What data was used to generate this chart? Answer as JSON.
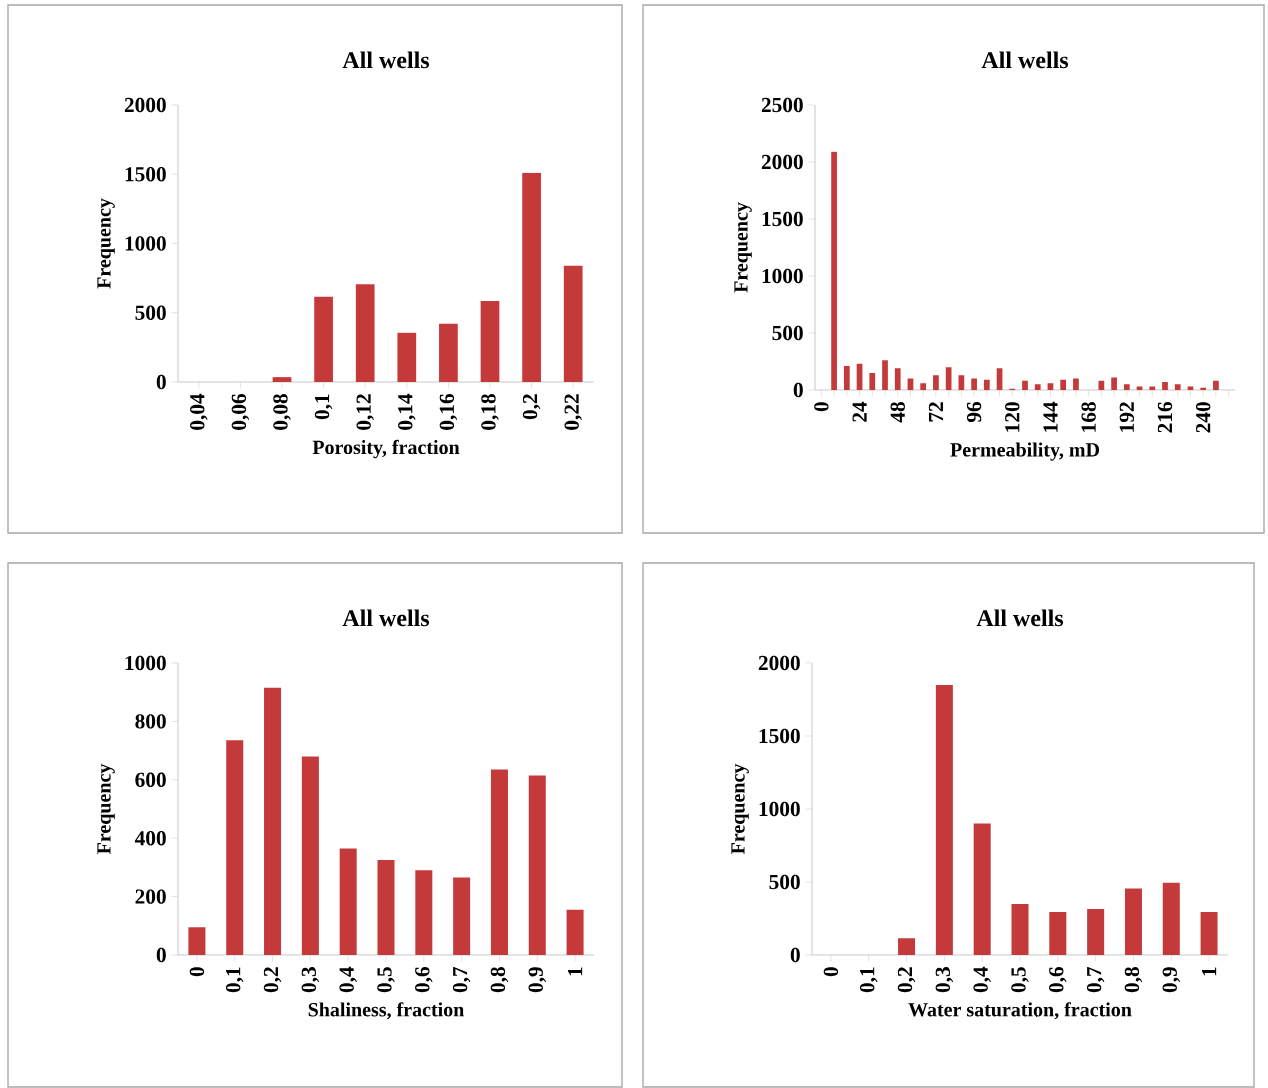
{
  "chart_data": [
    {
      "type": "bar",
      "title": "All wells",
      "xlabel": "Porosity, fraction",
      "ylabel": "Frequency",
      "color": "#c43a3a",
      "categories": [
        "0,04",
        "0,06",
        "0,08",
        "0,1",
        "0,12",
        "0,14",
        "0,16",
        "0,18",
        "0,2",
        "0,22"
      ],
      "values": [
        0,
        0,
        35,
        615,
        705,
        355,
        420,
        585,
        1510,
        840
      ],
      "ylim": [
        0,
        2000
      ],
      "yticks": [
        0,
        500,
        1000,
        1500,
        2000
      ]
    },
    {
      "type": "bar",
      "title": "All wells",
      "xlabel": "Permeability, mD",
      "ylabel": "Frequency",
      "color": "#c43a3a",
      "categories": [
        "0",
        null,
        null,
        "24",
        null,
        null,
        "48",
        null,
        null,
        "72",
        null,
        null,
        "96",
        null,
        null,
        "120",
        null,
        null,
        "144",
        null,
        null,
        "168",
        null,
        null,
        "192",
        null,
        null,
        "216",
        null,
        null,
        "240",
        null,
        null
      ],
      "values": [
        0,
        2090,
        210,
        230,
        150,
        260,
        190,
        100,
        60,
        130,
        200,
        130,
        100,
        90,
        190,
        10,
        80,
        50,
        60,
        90,
        100,
        0,
        80,
        110,
        50,
        30,
        30,
        70,
        50,
        30,
        20,
        80,
        0
      ],
      "ylim": [
        0,
        2500
      ],
      "yticks": [
        0,
        500,
        1000,
        1500,
        2000,
        2500
      ]
    },
    {
      "type": "bar",
      "title": "All wells",
      "xlabel": "Shaliness, fraction",
      "ylabel": "Frequency",
      "color": "#c43a3a",
      "categories": [
        "0",
        "0,1",
        "0,2",
        "0,3",
        "0,4",
        "0,5",
        "0,6",
        "0,7",
        "0,8",
        "0,9",
        "1"
      ],
      "values": [
        95,
        735,
        915,
        680,
        365,
        325,
        290,
        265,
        635,
        615,
        155
      ],
      "ylim": [
        0,
        1000
      ],
      "yticks": [
        0,
        200,
        400,
        600,
        800,
        1000
      ]
    },
    {
      "type": "bar",
      "title": "All wells",
      "xlabel": "Water saturation, fraction",
      "ylabel": "Frequency",
      "color": "#c43a3a",
      "categories": [
        "0",
        "0,1",
        "0,2",
        "0,3",
        "0,4",
        "0,5",
        "0,6",
        "0,7",
        "0,8",
        "0,9",
        "1"
      ],
      "values": [
        0,
        0,
        115,
        1850,
        900,
        350,
        295,
        315,
        455,
        495,
        295
      ],
      "ylim": [
        0,
        2000
      ],
      "yticks": [
        0,
        500,
        1000,
        1500,
        2000
      ]
    }
  ]
}
